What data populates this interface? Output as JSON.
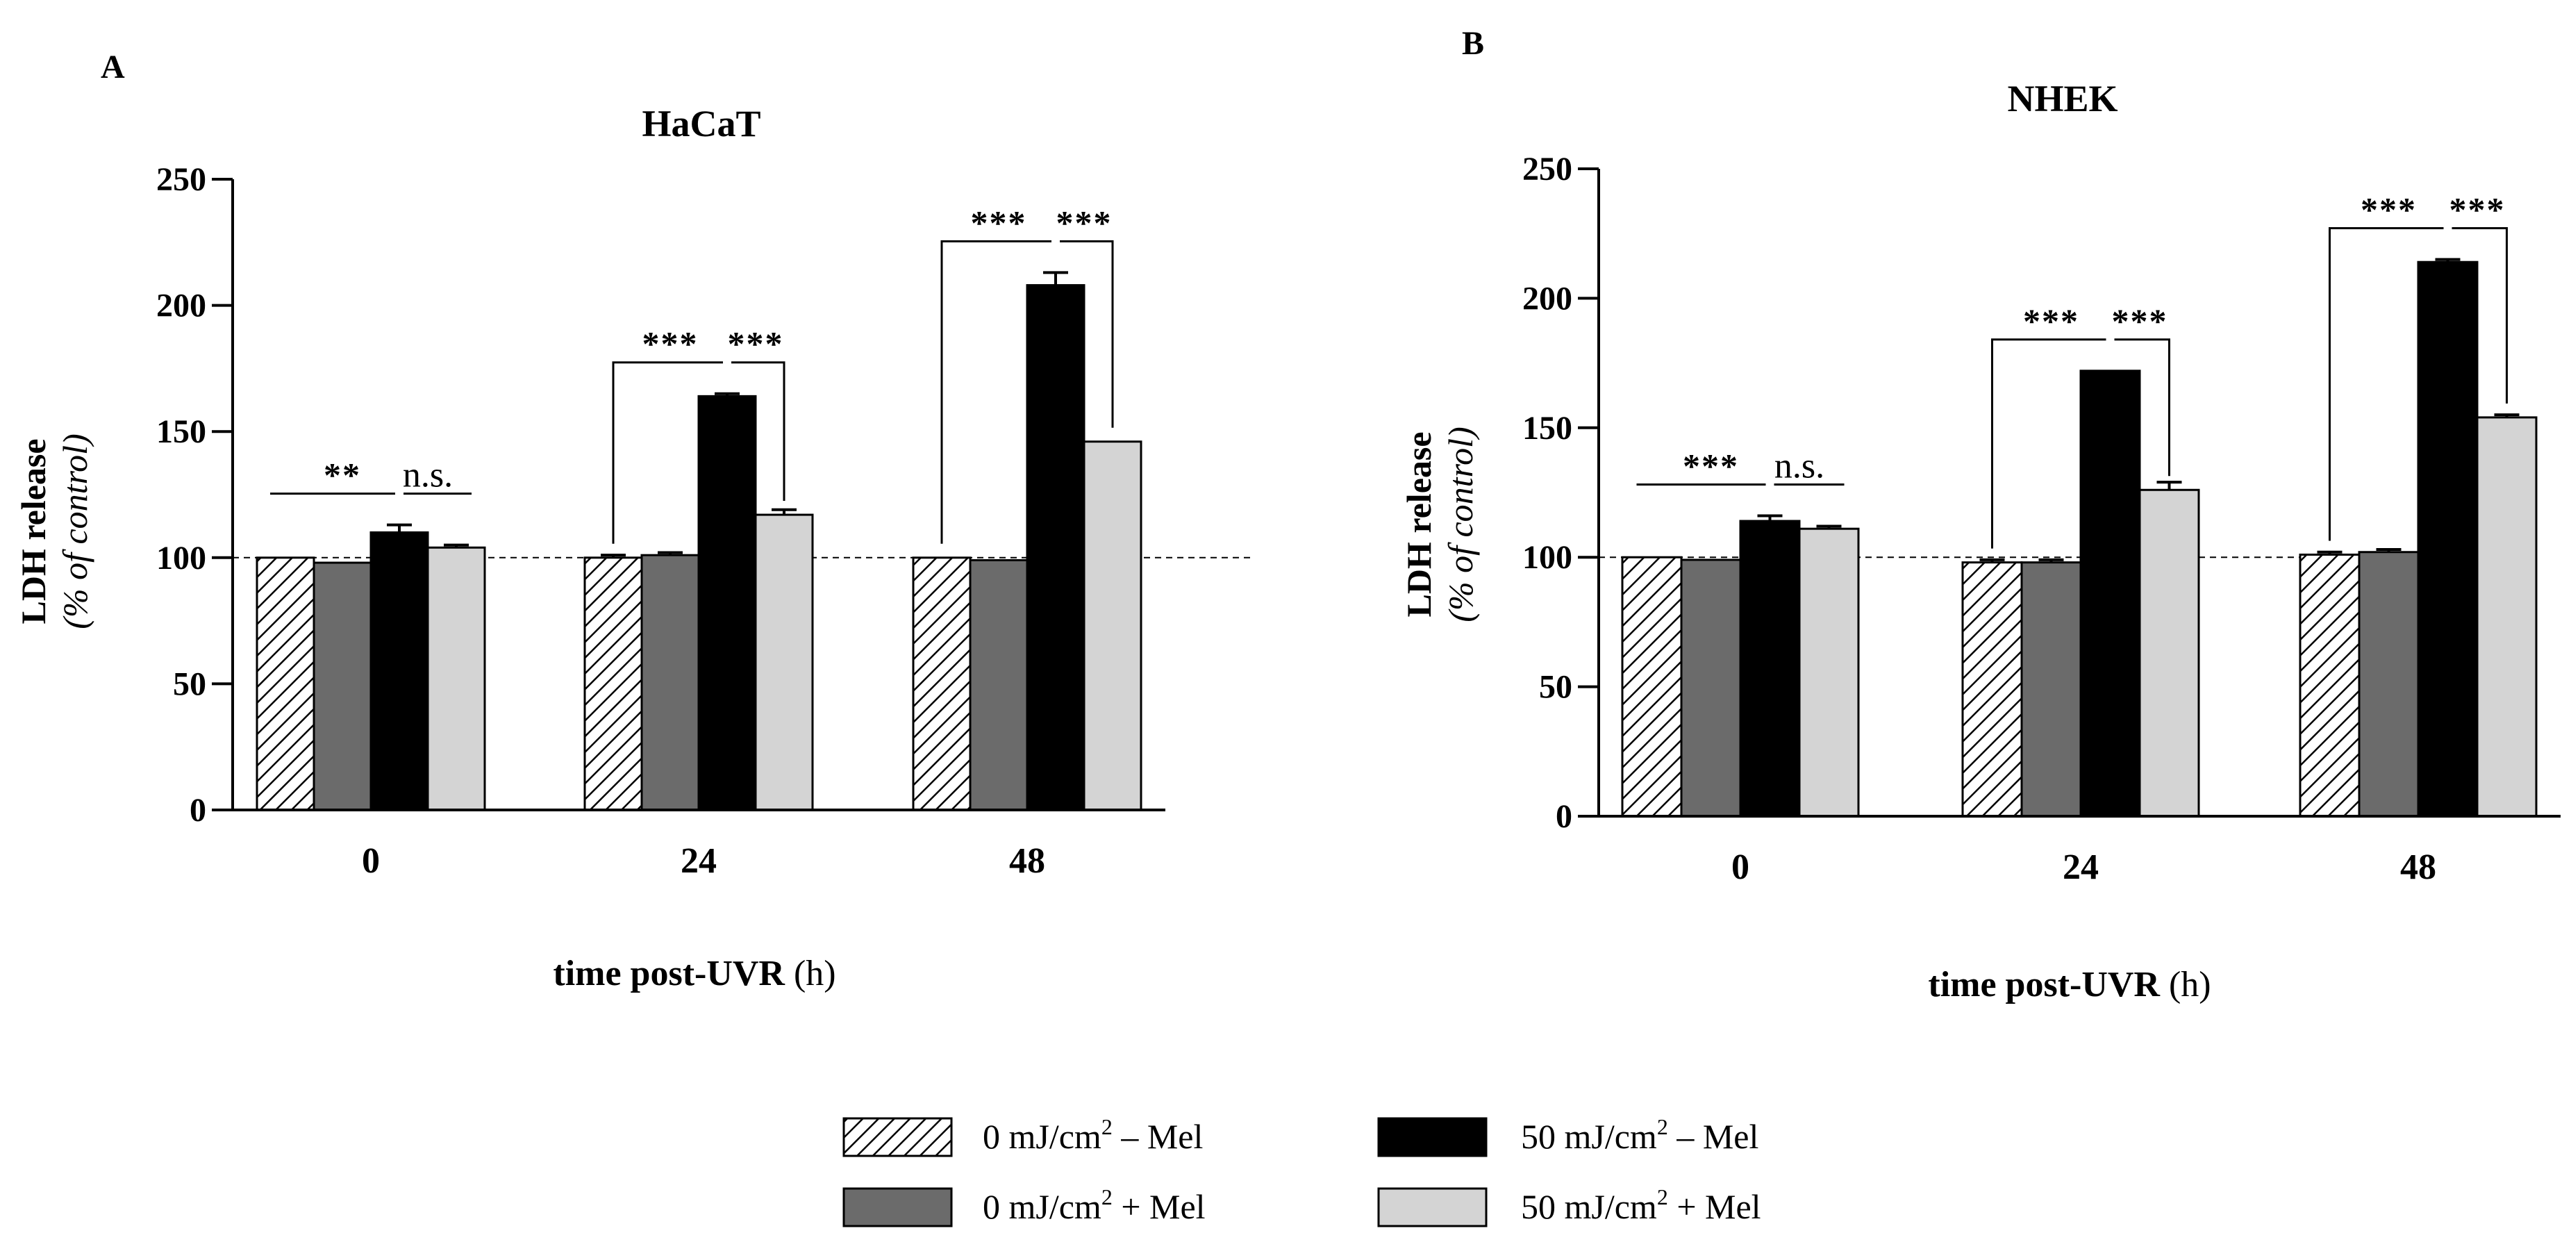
{
  "legend": [
    {
      "series": 0,
      "pre": "0 mJ/cm",
      "sup": "2",
      "post": " – Mel"
    },
    {
      "series": 1,
      "pre": "0 mJ/cm",
      "sup": "2",
      "post": " + Mel"
    },
    {
      "series": 2,
      "pre": "50 mJ/cm",
      "sup": "2",
      "post": " – Mel"
    },
    {
      "series": 3,
      "pre": "50 mJ/cm",
      "sup": "2",
      "post": " + Mel"
    }
  ],
  "series_styles": [
    {
      "fill": "hatch",
      "color": "#000000"
    },
    {
      "fill": "#6b6b6b",
      "color": "#6b6b6b"
    },
    {
      "fill": "#000000",
      "color": "#000000"
    },
    {
      "fill": "#d4d4d4",
      "color": "#d4d4d4"
    }
  ],
  "chart_data": [
    {
      "type": "bar",
      "panel": "A",
      "title": "HaCaT",
      "ylabel_bold": "LDH release",
      "ylabel_italic": "(% of control)",
      "xlabel_bold": "time post-UVR",
      "xlabel_normal": " (h)",
      "categories": [
        "0",
        "24",
        "48"
      ],
      "ylim": [
        0,
        250
      ],
      "yticks": [
        0,
        50,
        100,
        150,
        200,
        250
      ],
      "reference_line": 100,
      "series": [
        {
          "values": [
            100,
            100,
            100
          ],
          "errors": [
            0,
            1,
            0
          ]
        },
        {
          "values": [
            98,
            101,
            99
          ],
          "errors": [
            0,
            1,
            0
          ]
        },
        {
          "values": [
            110,
            164,
            208
          ],
          "errors": [
            3,
            1,
            5
          ]
        },
        {
          "values": [
            104,
            117,
            146
          ],
          "errors": [
            1,
            2,
            0
          ]
        }
      ],
      "significance": [
        {
          "category": 0,
          "left": "**",
          "right": "n.s.",
          "style": "flat"
        },
        {
          "category": 1,
          "left": "***",
          "right": "***",
          "style": "bracket"
        },
        {
          "category": 2,
          "left": "***",
          "right": "***",
          "style": "bracket"
        }
      ]
    },
    {
      "type": "bar",
      "panel": "B",
      "title": "NHEK",
      "ylabel_bold": "LDH release",
      "ylabel_italic": "(% of control)",
      "xlabel_bold": "time post-UVR",
      "xlabel_normal": " (h)",
      "categories": [
        "0",
        "24",
        "48"
      ],
      "ylim": [
        0,
        250
      ],
      "yticks": [
        0,
        50,
        100,
        150,
        200,
        250
      ],
      "reference_line": 100,
      "series": [
        {
          "values": [
            100,
            98,
            101
          ],
          "errors": [
            0,
            1,
            1
          ]
        },
        {
          "values": [
            99,
            98,
            102
          ],
          "errors": [
            0,
            1,
            1
          ]
        },
        {
          "values": [
            114,
            172,
            214
          ],
          "errors": [
            2,
            0,
            1
          ]
        },
        {
          "values": [
            111,
            126,
            154
          ],
          "errors": [
            1,
            3,
            1
          ]
        }
      ],
      "significance": [
        {
          "category": 0,
          "left": "***",
          "right": "n.s.",
          "style": "flat"
        },
        {
          "category": 1,
          "left": "***",
          "right": "***",
          "style": "bracket"
        },
        {
          "category": 2,
          "left": "***",
          "right": "***",
          "style": "bracket"
        }
      ]
    }
  ]
}
